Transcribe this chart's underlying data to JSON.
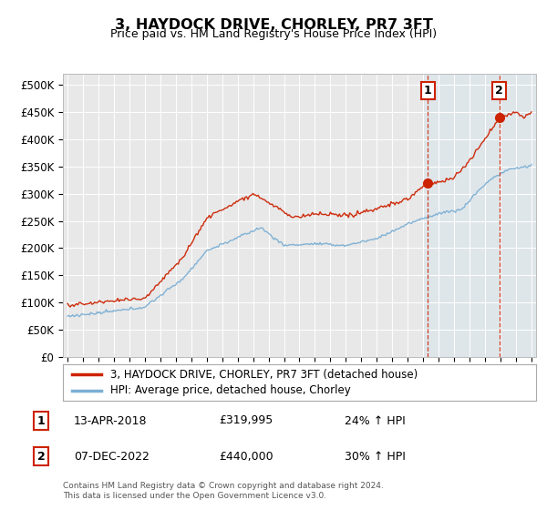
{
  "title": "3, HAYDOCK DRIVE, CHORLEY, PR7 3FT",
  "subtitle": "Price paid vs. HM Land Registry's House Price Index (HPI)",
  "ylim": [
    0,
    520000
  ],
  "yticks": [
    0,
    50000,
    100000,
    150000,
    200000,
    250000,
    300000,
    350000,
    400000,
    450000,
    500000
  ],
  "ytick_labels": [
    "£0",
    "£50K",
    "£100K",
    "£150K",
    "£200K",
    "£250K",
    "£300K",
    "£350K",
    "£400K",
    "£450K",
    "£500K"
  ],
  "hpi_color": "#7bafd4",
  "price_color": "#cc2200",
  "bg_color": "#ffffff",
  "plot_bg": "#e8e8e8",
  "shade_color": "#d0e4f0",
  "transaction1_year": 2018.29,
  "transaction1_price": 319995,
  "transaction1_hpi_pct": "24%",
  "transaction1_date": "13-APR-2018",
  "transaction2_year": 2022.92,
  "transaction2_price": 440000,
  "transaction2_hpi_pct": "30%",
  "transaction2_date": "07-DEC-2022",
  "legend_entry1": "3, HAYDOCK DRIVE, CHORLEY, PR7 3FT (detached house)",
  "legend_entry2": "HPI: Average price, detached house, Chorley",
  "footnote1": "Contains HM Land Registry data © Crown copyright and database right 2024.",
  "footnote2": "This data is licensed under the Open Government Licence v3.0.",
  "xlim_start": 1994.7,
  "xlim_end": 2025.3,
  "shade_start": 2018.0,
  "shade_end": 2025.3
}
